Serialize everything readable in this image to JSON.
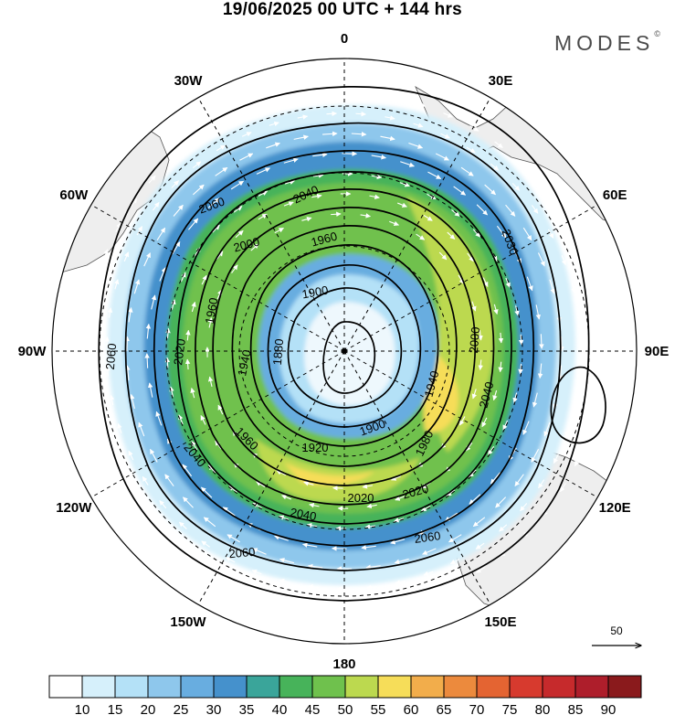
{
  "title": "19/06/2025  00 UTC  + 144 hrs",
  "logo": {
    "text": "MODES",
    "mark": "©"
  },
  "map": {
    "projection": "south-polar-stereographic",
    "center_latitude": -90,
    "field": "wind speed shading (m/s) with geopotential height contours (gpm) and wind vectors",
    "longitude_labels": [
      {
        "lon": 0,
        "text": "0"
      },
      {
        "lon": 30,
        "text": "30E"
      },
      {
        "lon": 60,
        "text": "60E"
      },
      {
        "lon": 90,
        "text": "90E"
      },
      {
        "lon": 120,
        "text": "120E"
      },
      {
        "lon": 150,
        "text": "150E"
      },
      {
        "lon": 180,
        "text": "180"
      },
      {
        "lon": -150,
        "text": "150W"
      },
      {
        "lon": -120,
        "text": "120W"
      },
      {
        "lon": -90,
        "text": "90W"
      },
      {
        "lon": -60,
        "text": "60W"
      },
      {
        "lon": -30,
        "text": "30W"
      }
    ],
    "contour_labels": [
      "2060",
      "2040",
      "2020",
      "2000",
      "1980",
      "1960",
      "1940",
      "1920",
      "1900",
      "1880",
      "2030"
    ],
    "vector_reference": {
      "value": "50"
    }
  },
  "colorbar": {
    "labels": [
      "10",
      "15",
      "20",
      "25",
      "30",
      "35",
      "40",
      "45",
      "50",
      "55",
      "60",
      "65",
      "70",
      "75",
      "80",
      "85",
      "90"
    ],
    "colors": [
      "#ffffff",
      "#d6f0fb",
      "#b4e1f7",
      "#8ec7ec",
      "#68ade0",
      "#4591cc",
      "#3aa59a",
      "#47b35a",
      "#6fc14d",
      "#bcd94f",
      "#f6dd59",
      "#f2ad4b",
      "#ec8a3d",
      "#e46432",
      "#d73a2e",
      "#c62a2c",
      "#ae1e2b",
      "#8a1a1c"
    ]
  }
}
